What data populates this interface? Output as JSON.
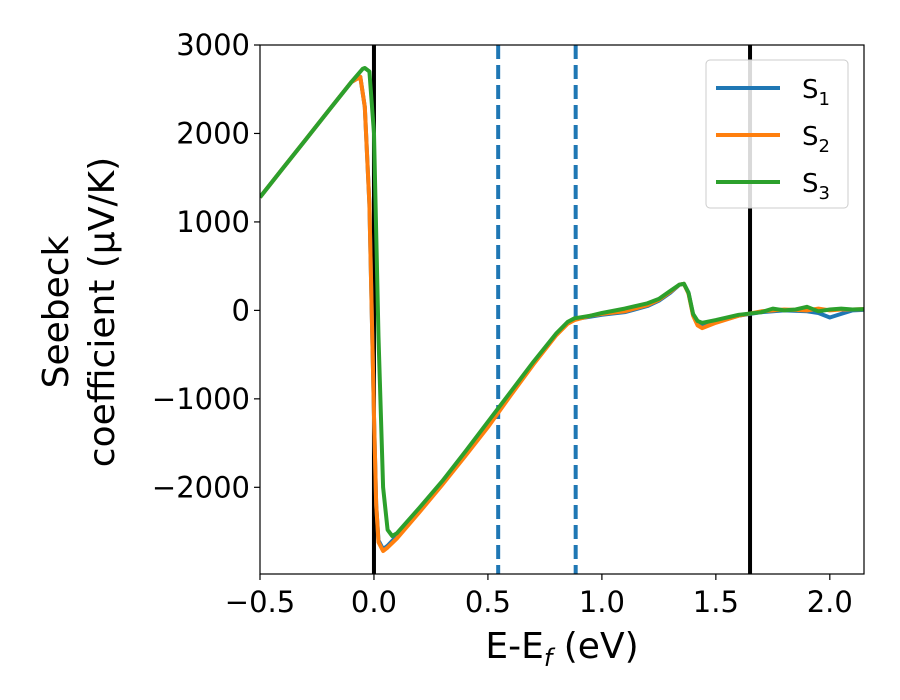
{
  "chart_data": {
    "type": "line",
    "xlabel_main": "E-E",
    "xlabel_sub": "f",
    "xlabel_unit": " (eV)",
    "ylabel_line1": "Seebeck",
    "ylabel_line2": "coefficient  (μV/K)",
    "xlim": [
      -0.5,
      2.15
    ],
    "ylim": [
      -2980,
      3000
    ],
    "xticks": [
      -0.5,
      0.0,
      0.5,
      1.0,
      1.5,
      2.0
    ],
    "xtick_labels": [
      "−0.5",
      "0.0",
      "0.5",
      "1.0",
      "1.5",
      "2.0"
    ],
    "yticks": [
      3000,
      2000,
      1000,
      0,
      -1000,
      -2000
    ],
    "ytick_labels": [
      "3000",
      "2000",
      "1000",
      "0",
      "−1000",
      "−2000"
    ],
    "legend_position": "top-right",
    "vlines_solid": [
      0.0,
      1.65
    ],
    "vlines_dashed": [
      0.545,
      0.885
    ],
    "vline_solid_color": "#000000",
    "vline_dashed_color": "#1f77b4",
    "series": [
      {
        "name_main": "S",
        "name_sub": "1",
        "color": "#1f77b4",
        "x": [
          -0.5,
          -0.4,
          -0.3,
          -0.2,
          -0.1,
          -0.06,
          -0.04,
          -0.02,
          0.0,
          0.01,
          0.02,
          0.04,
          0.06,
          0.1,
          0.2,
          0.3,
          0.4,
          0.5,
          0.6,
          0.7,
          0.8,
          0.85,
          0.88,
          0.95,
          1.0,
          1.1,
          1.2,
          1.25,
          1.3,
          1.34,
          1.36,
          1.38,
          1.4,
          1.42,
          1.44,
          1.5,
          1.6,
          1.7,
          1.8,
          1.9,
          1.95,
          2.0,
          2.05,
          2.1,
          2.15
        ],
        "y": [
          1280,
          1605,
          1930,
          2255,
          2580,
          2640,
          2300,
          1200,
          -1200,
          -2200,
          -2600,
          -2700,
          -2660,
          -2550,
          -2250,
          -1950,
          -1630,
          -1300,
          -950,
          -600,
          -270,
          -140,
          -100,
          -70,
          -50,
          -20,
          50,
          110,
          200,
          290,
          300,
          200,
          -50,
          -150,
          -180,
          -130,
          -60,
          -20,
          0,
          -10,
          -30,
          -80,
          -40,
          0,
          5
        ]
      },
      {
        "name_main": "S",
        "name_sub": "2",
        "color": "#ff7f0e",
        "x": [
          -0.5,
          -0.4,
          -0.3,
          -0.2,
          -0.1,
          -0.06,
          -0.04,
          -0.02,
          0.0,
          0.01,
          0.02,
          0.04,
          0.06,
          0.1,
          0.2,
          0.3,
          0.4,
          0.5,
          0.6,
          0.7,
          0.8,
          0.85,
          0.88,
          0.95,
          1.0,
          1.1,
          1.2,
          1.25,
          1.3,
          1.34,
          1.36,
          1.38,
          1.4,
          1.42,
          1.44,
          1.5,
          1.6,
          1.7,
          1.8,
          1.9,
          1.95,
          2.0,
          2.05,
          2.1,
          2.15
        ],
        "y": [
          1280,
          1605,
          1930,
          2255,
          2580,
          2640,
          2300,
          1200,
          -1200,
          -2200,
          -2620,
          -2720,
          -2680,
          -2580,
          -2280,
          -1970,
          -1650,
          -1320,
          -960,
          -610,
          -280,
          -150,
          -110,
          -60,
          -40,
          -10,
          60,
          120,
          210,
          290,
          300,
          190,
          -60,
          -170,
          -200,
          -140,
          -60,
          -10,
          10,
          0,
          20,
          0,
          10,
          10,
          15
        ]
      },
      {
        "name_main": "S",
        "name_sub": "3",
        "color": "#2ca02c",
        "x": [
          -0.5,
          -0.4,
          -0.3,
          -0.2,
          -0.1,
          -0.05,
          -0.04,
          -0.02,
          0.0,
          0.02,
          0.04,
          0.06,
          0.08,
          0.1,
          0.2,
          0.3,
          0.4,
          0.5,
          0.6,
          0.7,
          0.8,
          0.85,
          0.88,
          0.95,
          1.0,
          1.1,
          1.2,
          1.25,
          1.3,
          1.34,
          1.36,
          1.38,
          1.4,
          1.42,
          1.44,
          1.5,
          1.6,
          1.7,
          1.75,
          1.8,
          1.85,
          1.9,
          1.95,
          2.0,
          2.05,
          2.1,
          2.15
        ],
        "y": [
          1280,
          1605,
          1930,
          2255,
          2580,
          2730,
          2740,
          2700,
          2000,
          -300,
          -2000,
          -2480,
          -2550,
          -2520,
          -2230,
          -1930,
          -1600,
          -1260,
          -920,
          -580,
          -260,
          -130,
          -90,
          -60,
          -30,
          20,
          80,
          130,
          220,
          290,
          300,
          200,
          -40,
          -120,
          -140,
          -110,
          -50,
          -20,
          20,
          0,
          10,
          40,
          -10,
          10,
          20,
          10,
          15
        ]
      }
    ]
  }
}
